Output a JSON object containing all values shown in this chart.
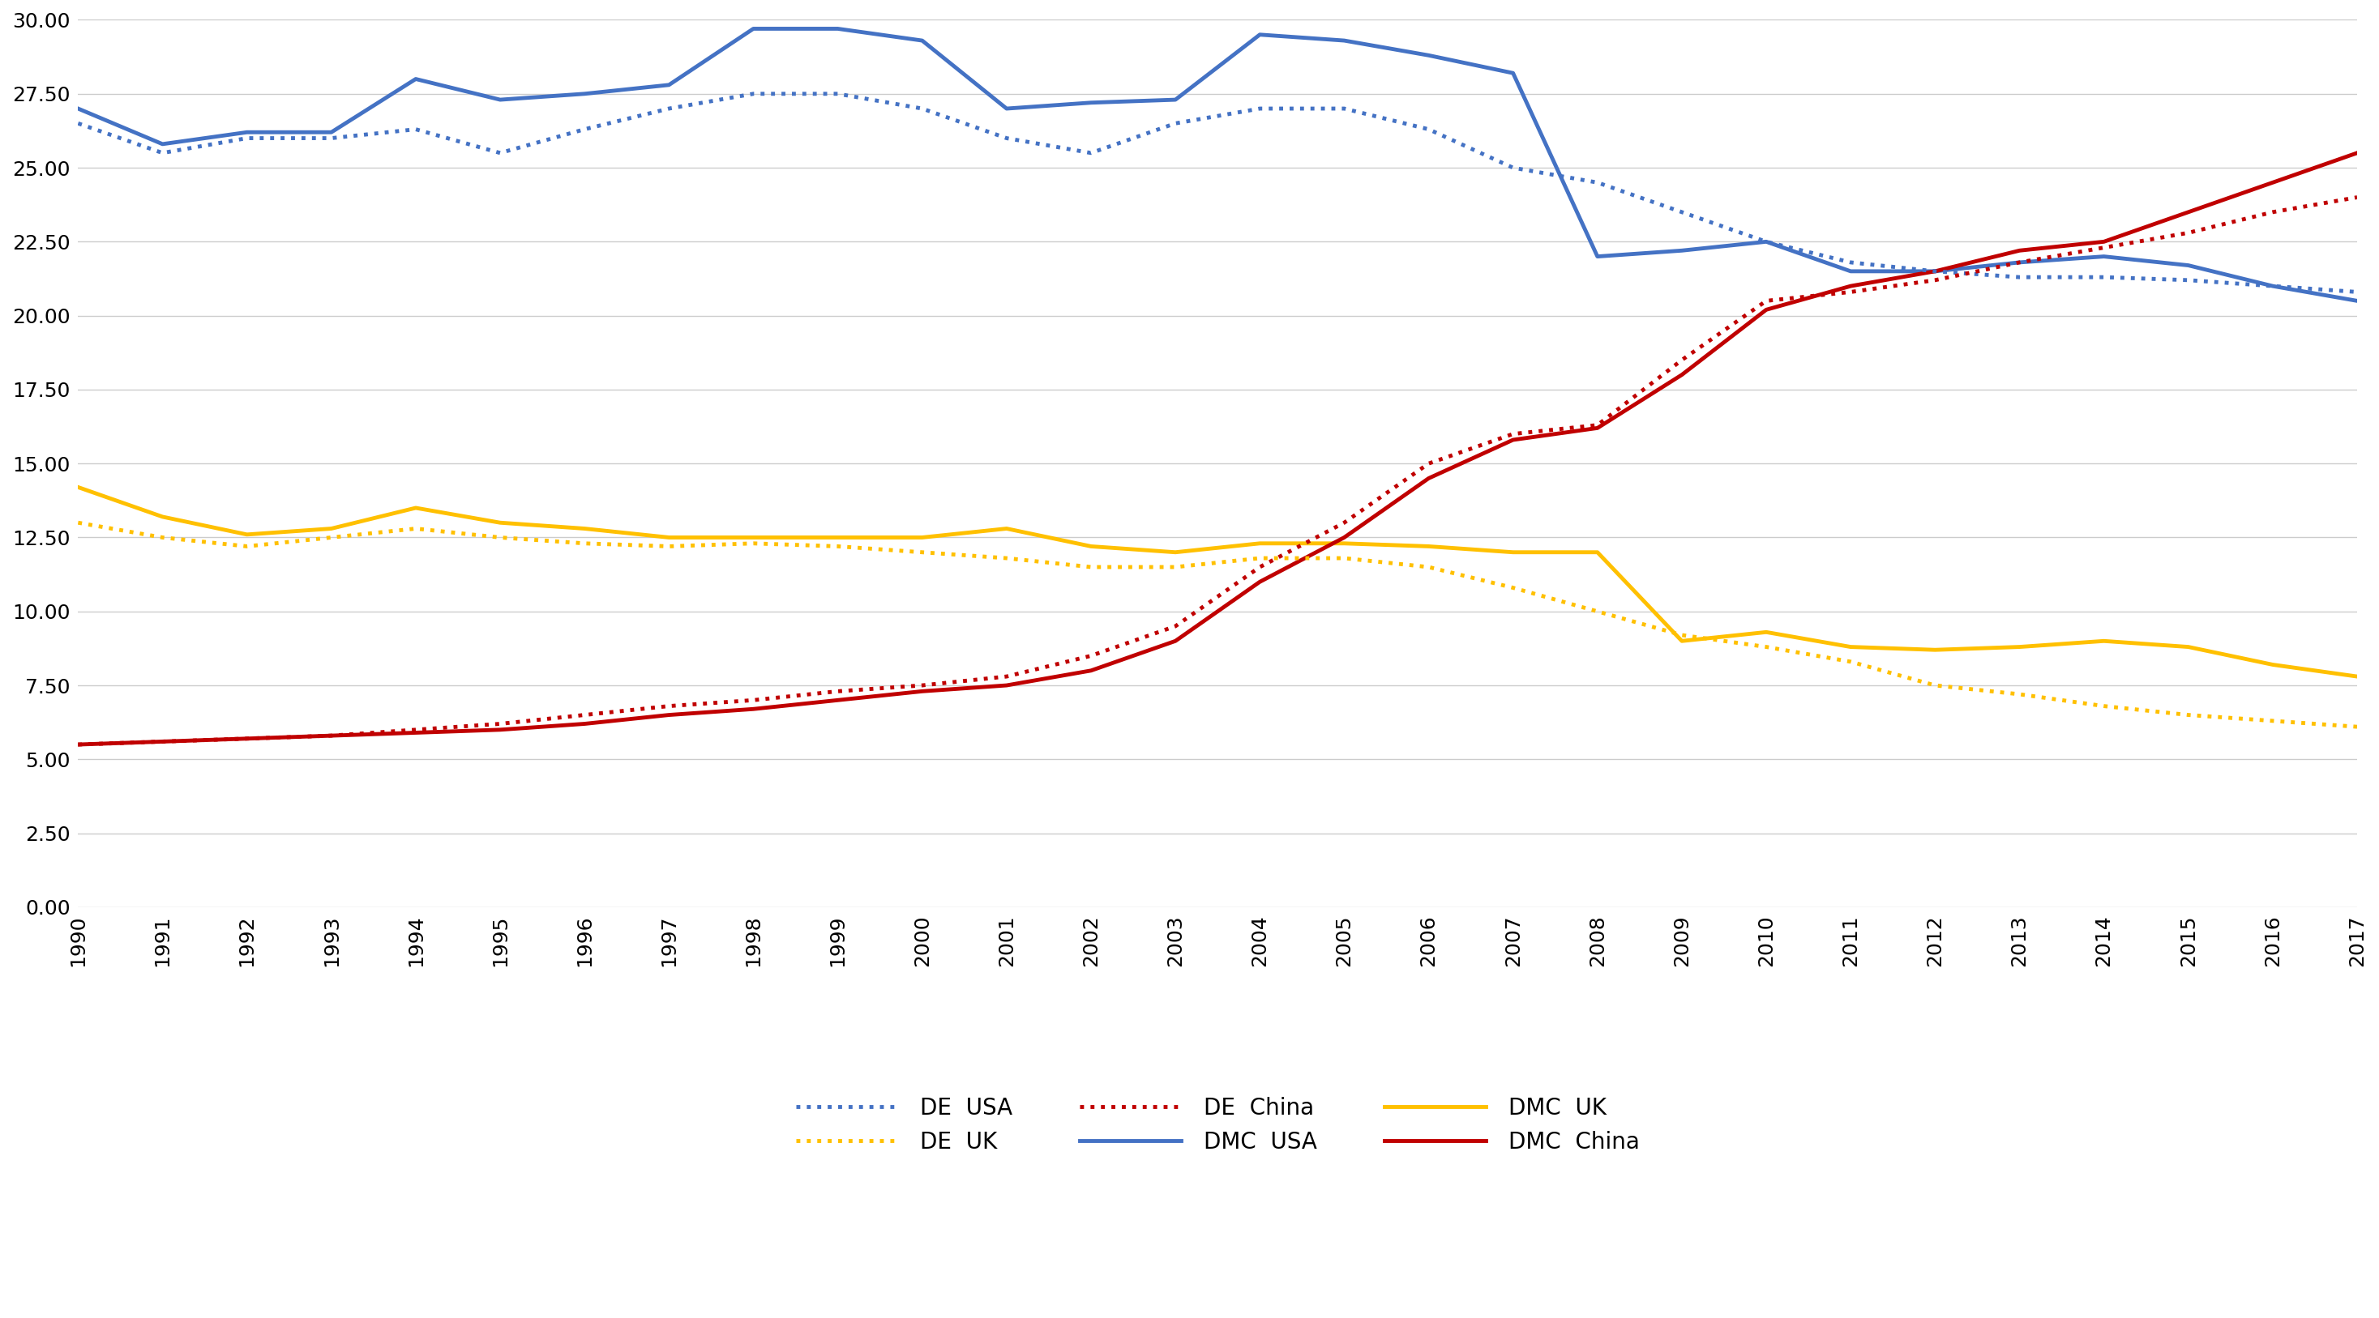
{
  "years": [
    1990,
    1991,
    1992,
    1993,
    1994,
    1995,
    1996,
    1997,
    1998,
    1999,
    2000,
    2001,
    2002,
    2003,
    2004,
    2005,
    2006,
    2007,
    2008,
    2009,
    2010,
    2011,
    2012,
    2013,
    2014,
    2015,
    2016,
    2017
  ],
  "DMC_USA": [
    27.0,
    25.8,
    26.2,
    26.2,
    28.0,
    27.3,
    27.5,
    27.8,
    29.7,
    29.7,
    29.3,
    27.0,
    27.2,
    27.3,
    29.5,
    29.3,
    28.8,
    28.2,
    22.0,
    22.2,
    22.5,
    21.5,
    21.5,
    21.8,
    22.0,
    21.7,
    21.0,
    20.5
  ],
  "DE_USA": [
    26.5,
    25.5,
    26.0,
    26.0,
    26.3,
    25.5,
    26.3,
    27.0,
    27.5,
    27.5,
    27.0,
    26.0,
    25.5,
    26.5,
    27.0,
    27.0,
    26.3,
    25.0,
    24.5,
    23.5,
    22.5,
    21.8,
    21.5,
    21.3,
    21.3,
    21.2,
    21.0,
    20.8
  ],
  "DMC_UK": [
    14.2,
    13.2,
    12.6,
    12.8,
    13.5,
    13.0,
    12.8,
    12.5,
    12.5,
    12.5,
    12.5,
    12.8,
    12.2,
    12.0,
    12.3,
    12.3,
    12.2,
    12.0,
    12.0,
    9.0,
    9.3,
    8.8,
    8.7,
    8.8,
    9.0,
    8.8,
    8.2,
    7.8
  ],
  "DE_UK": [
    13.0,
    12.5,
    12.2,
    12.5,
    12.8,
    12.5,
    12.3,
    12.2,
    12.3,
    12.2,
    12.0,
    11.8,
    11.5,
    11.5,
    11.8,
    11.8,
    11.5,
    10.8,
    10.0,
    9.2,
    8.8,
    8.3,
    7.5,
    7.2,
    6.8,
    6.5,
    6.3,
    6.1
  ],
  "DMC_China": [
    5.5,
    5.6,
    5.7,
    5.8,
    5.9,
    6.0,
    6.2,
    6.5,
    6.7,
    7.0,
    7.3,
    7.5,
    8.0,
    9.0,
    11.0,
    12.5,
    14.5,
    15.8,
    16.2,
    18.0,
    20.2,
    21.0,
    21.5,
    22.2,
    22.5,
    23.5,
    24.5,
    25.5
  ],
  "DE_China": [
    5.5,
    5.6,
    5.7,
    5.8,
    6.0,
    6.2,
    6.5,
    6.8,
    7.0,
    7.3,
    7.5,
    7.8,
    8.5,
    9.5,
    11.5,
    13.0,
    15.0,
    16.0,
    16.3,
    18.5,
    20.5,
    20.8,
    21.2,
    21.8,
    22.3,
    22.8,
    23.5,
    24.0
  ],
  "color_blue": "#4472C4",
  "color_yellow": "#FFC000",
  "color_red": "#C00000",
  "ylim": [
    0.0,
    30.0
  ],
  "yticks": [
    0.0,
    2.5,
    5.0,
    7.5,
    10.0,
    12.5,
    15.0,
    17.5,
    20.0,
    22.5,
    25.0,
    27.5,
    30.0
  ],
  "background_color": "#FFFFFF",
  "grid_color": "#CCCCCC"
}
